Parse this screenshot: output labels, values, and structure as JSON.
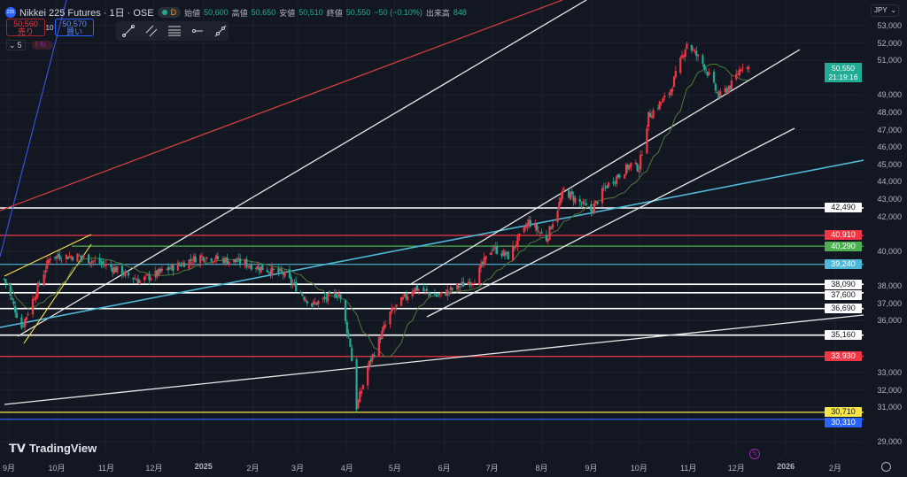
{
  "header": {
    "symbol_icon": "225",
    "title": "Nikkei 225 Futures · 1日 · OSE",
    "market_status": "D",
    "open_label": "始値",
    "open": "50,600",
    "high_label": "高値",
    "high": "50,650",
    "low_label": "安値",
    "low": "50,510",
    "close_label": "終値",
    "close": "50,550",
    "change": "−50 (−0.10%)",
    "volume_label": "出来高",
    "volume": "848"
  },
  "trade": {
    "sell_price": "50,560",
    "sell_label": "売り",
    "spread": "10",
    "buy_price": "50,570",
    "buy_label": "買い"
  },
  "indicators": {
    "count": "5"
  },
  "drawing_toolbar": [
    "trend-line-icon",
    "parallel-channel-icon",
    "fib-retracement-icon",
    "horizontal-ray-icon",
    "extended-line-icon"
  ],
  "currency": "JPY",
  "last_price": {
    "value": "50,550",
    "countdown": "21:19:16",
    "color": "#22ab94"
  },
  "brand": "TradingView",
  "colors": {
    "up": "#f23645",
    "down": "#22ab94",
    "ma": "#4f7a3a"
  },
  "chart_data": {
    "type": "candlestick",
    "ylim": [
      28500,
      53500
    ],
    "y_ticks": [
      "53,000",
      "52,000",
      "51,000",
      "49,000",
      "48,000",
      "47,000",
      "46,000",
      "45,000",
      "44,000",
      "43,000",
      "42,000",
      "40,000",
      "38,000",
      "37,000",
      "36,000",
      "33,000",
      "32,000",
      "31,000",
      "29,000"
    ],
    "y_tick_values": [
      53000,
      52000,
      51000,
      49000,
      48000,
      47000,
      46000,
      45000,
      44000,
      43000,
      42000,
      40000,
      38000,
      37000,
      36000,
      33000,
      32000,
      31000,
      29000
    ],
    "x_ticks": [
      {
        "label": "9月",
        "date": "2024-09-01"
      },
      {
        "label": "10月",
        "date": "2024-10-01"
      },
      {
        "label": "11月",
        "date": "2024-11-01"
      },
      {
        "label": "12月",
        "date": "2024-12-01"
      },
      {
        "label": "2025",
        "date": "2025-01-01"
      },
      {
        "label": "2月",
        "date": "2025-02-01"
      },
      {
        "label": "3月",
        "date": "2025-03-01"
      },
      {
        "label": "4月",
        "date": "2025-04-01"
      },
      {
        "label": "5月",
        "date": "2025-05-01"
      },
      {
        "label": "6月",
        "date": "2025-06-01"
      },
      {
        "label": "7月",
        "date": "2025-07-01"
      },
      {
        "label": "8月",
        "date": "2025-08-01"
      },
      {
        "label": "9月",
        "date": "2025-09-01"
      },
      {
        "label": "10月",
        "date": "2025-10-01"
      },
      {
        "label": "11月",
        "date": "2025-11-01"
      },
      {
        "label": "12月",
        "date": "2025-12-01"
      },
      {
        "label": "2026",
        "date": "2026-01-01"
      },
      {
        "label": "2月",
        "date": "2026-02-01"
      }
    ],
    "approx_closes": [
      [
        "2024-08-29",
        38400
      ],
      [
        "2024-09-09",
        35600
      ],
      [
        "2024-09-27",
        39700
      ],
      [
        "2024-10-15",
        39700
      ],
      [
        "2024-11-01",
        39200
      ],
      [
        "2024-11-22",
        38300
      ],
      [
        "2024-12-30",
        39700
      ],
      [
        "2025-01-22",
        39400
      ],
      [
        "2025-02-20",
        38700
      ],
      [
        "2025-03-10",
        36900
      ],
      [
        "2025-03-27",
        37600
      ],
      [
        "2025-04-03",
        34600
      ],
      [
        "2025-04-07",
        31000
      ],
      [
        "2025-04-14",
        33300
      ],
      [
        "2025-04-28",
        36400
      ],
      [
        "2025-05-13",
        37900
      ],
      [
        "2025-05-28",
        37400
      ],
      [
        "2025-06-20",
        38400
      ],
      [
        "2025-07-01",
        40200
      ],
      [
        "2025-07-11",
        39700
      ],
      [
        "2025-07-24",
        41700
      ],
      [
        "2025-08-04",
        40700
      ],
      [
        "2025-08-15",
        43500
      ],
      [
        "2025-09-01",
        42300
      ],
      [
        "2025-09-10",
        43700
      ],
      [
        "2025-09-26",
        45000
      ],
      [
        "2025-10-01",
        44800
      ],
      [
        "2025-10-07",
        47800
      ],
      [
        "2025-10-20",
        49100
      ],
      [
        "2025-10-31",
        52000
      ],
      [
        "2025-11-11",
        50700
      ],
      [
        "2025-11-20",
        48900
      ],
      [
        "2025-11-28",
        49600
      ],
      [
        "2025-12-05",
        50800
      ],
      [
        "2025-12-09",
        50550
      ]
    ],
    "levels": [
      {
        "value": 42490,
        "label": "42,490",
        "color": "#ffffff"
      },
      {
        "value": 40910,
        "label": "40,910",
        "color": "#f23645"
      },
      {
        "value": 40290,
        "label": "40,290",
        "color": "#4caf50"
      },
      {
        "value": 39240,
        "label": "39,240",
        "color": "#4fb8d6"
      },
      {
        "value": 38090,
        "label": "38,090",
        "color": "#ffffff"
      },
      {
        "value": 37600,
        "label": "37,600",
        "color": "#ffffff"
      },
      {
        "value": 36690,
        "label": "36,690",
        "color": "#ffffff"
      },
      {
        "value": 35160,
        "label": "35,160",
        "color": "#ffffff"
      },
      {
        "value": 33930,
        "label": "33,930",
        "color": "#f23645"
      },
      {
        "value": 30710,
        "label": "30,710",
        "color": "#f7e54a"
      },
      {
        "value": 30310,
        "label": "30,310",
        "color": "#2962ff"
      }
    ]
  }
}
